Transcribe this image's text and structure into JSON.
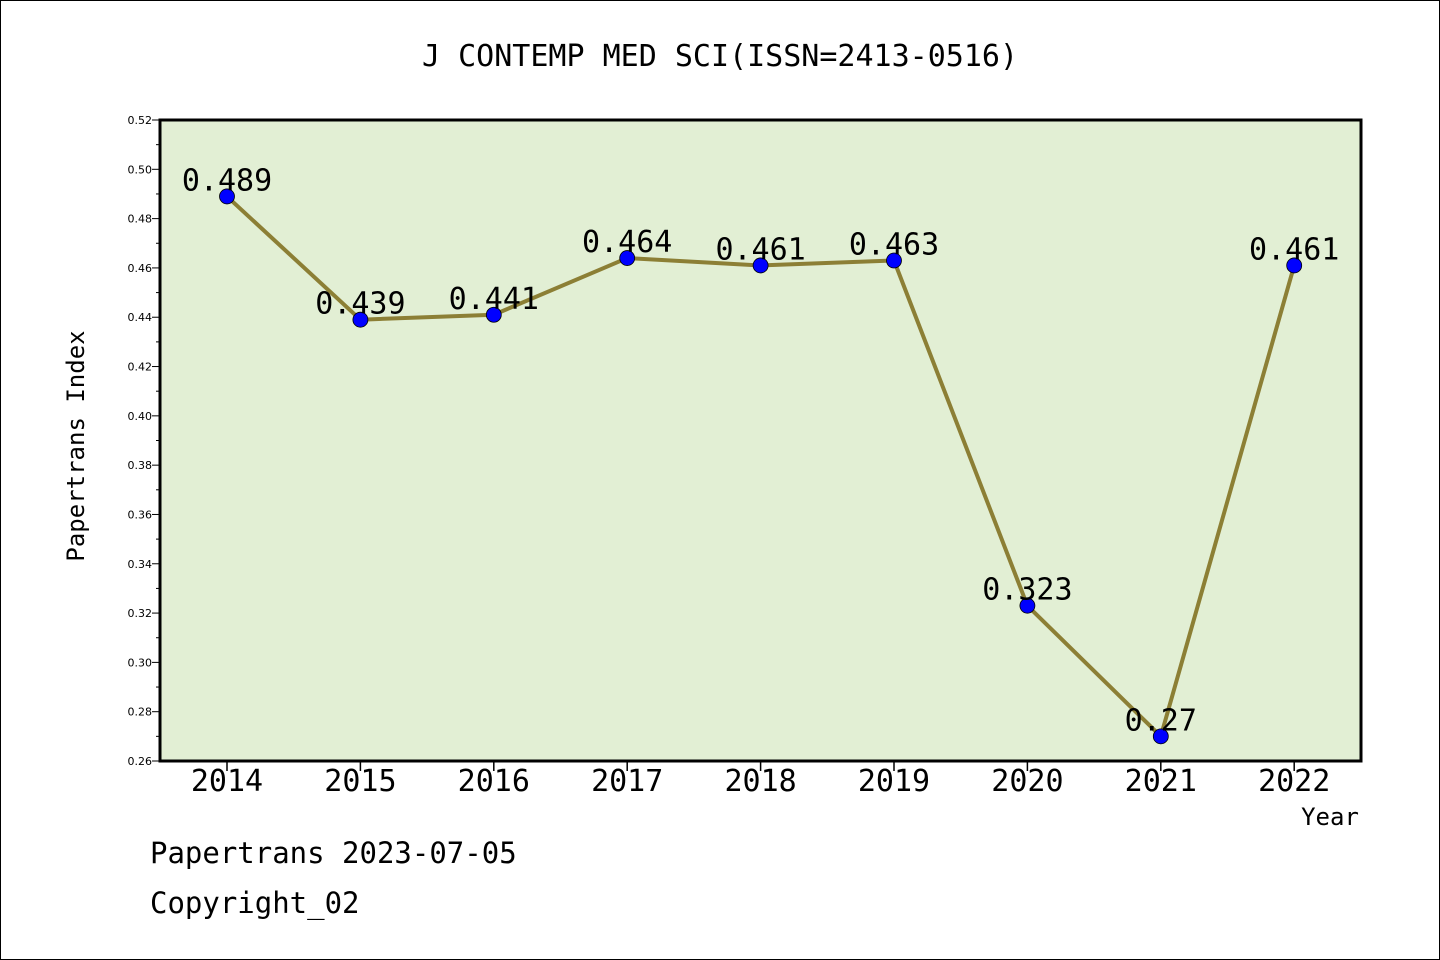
{
  "chart_data": {
    "type": "line",
    "title": "J CONTEMP MED SCI(ISSN=2413-0516)",
    "xlabel": "Year",
    "ylabel": "Papertrans Index",
    "categories": [
      "2014",
      "2015",
      "2016",
      "2017",
      "2018",
      "2019",
      "2020",
      "2021",
      "2022"
    ],
    "values": [
      0.489,
      0.439,
      0.441,
      0.464,
      0.461,
      0.463,
      0.323,
      0.27,
      0.461
    ],
    "data_labels": [
      "0.489",
      "0.439",
      "0.441",
      "0.464",
      "0.461",
      "0.463",
      "0.323",
      "0.27",
      "0.461"
    ],
    "ylim": [
      0.26,
      0.52
    ],
    "yticks": [
      "0.26",
      "0.28",
      "0.30",
      "0.32",
      "0.34",
      "0.36",
      "0.38",
      "0.40",
      "0.42",
      "0.44",
      "0.46",
      "0.48",
      "0.50",
      "0.52"
    ],
    "grid": false,
    "colors": {
      "plot_background": "#e2efd4",
      "line": "#8c7f35",
      "marker": "#0000ff"
    }
  },
  "footer": {
    "line1": "Papertrans 2023-07-05",
    "line2": "Copyright_02"
  }
}
